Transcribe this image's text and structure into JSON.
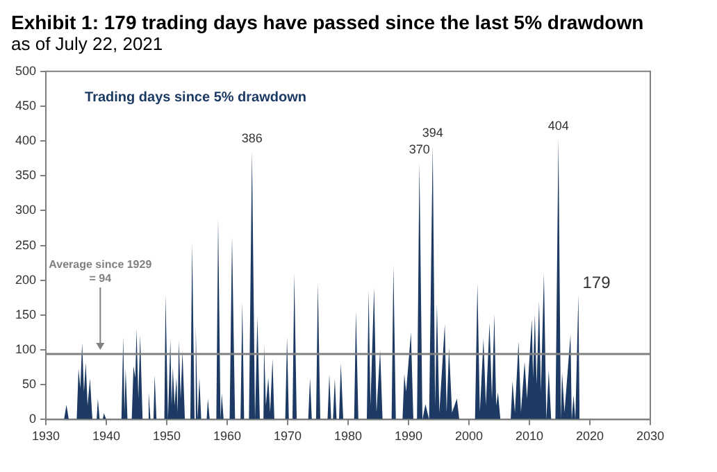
{
  "chart_data": {
    "type": "area",
    "title": "Exhibit 1: 179 trading days have passed since the last 5% drawdown",
    "subtitle": "as of July 22, 2021",
    "series": [
      {
        "name": "Trading days since 5% drawdown",
        "color": "#1c3a63",
        "x": [
          1930,
          1933.0,
          1933.4,
          1933.8,
          1935.1,
          1935.4,
          1935.7,
          1936.0,
          1936.3,
          1936.6,
          1936.9,
          1937.3,
          1937.7,
          1938.4,
          1938.6,
          1938.9,
          1939.4,
          1939.6,
          1940.0,
          1942.5,
          1942.8,
          1943.0,
          1943.2,
          1943.5,
          1944.2,
          1944.5,
          1944.8,
          1945.0,
          1945.3,
          1945.6,
          1946.0,
          1946.8,
          1947.0,
          1947.3,
          1947.8,
          1948.0,
          1948.3,
          1949.6,
          1949.8,
          1950.2,
          1950.6,
          1950.8,
          1951.0,
          1951.3,
          1951.6,
          1951.8,
          1952.0,
          1952.3,
          1952.6,
          1953.0,
          1953.9,
          1954.2,
          1954.6,
          1954.8,
          1955.1,
          1955.4,
          1955.7,
          1956.6,
          1956.8,
          1957.1,
          1958.2,
          1958.5,
          1958.9,
          1959.1,
          1959.4,
          1960.4,
          1960.8,
          1961.3,
          1962.2,
          1962.5,
          1962.8,
          1963.6,
          1964.1,
          1964.6,
          1965.0,
          1965.4,
          1966.0,
          1966.1,
          1966.4,
          1966.8,
          1967.1,
          1967.5,
          1967.8,
          1969.6,
          1969.9,
          1970.2,
          1970.8,
          1971.1,
          1971.5,
          1973.4,
          1973.7,
          1974.0,
          1974.7,
          1975.0,
          1975.4,
          1976.6,
          1976.9,
          1977.2,
          1977.5,
          1977.8,
          1978.1,
          1978.5,
          1978.8,
          1979.2,
          1981.0,
          1981.3,
          1981.7,
          1983.1,
          1983.4,
          1983.7,
          1984.3,
          1984.7,
          1985.3,
          1985.7,
          1987.2,
          1987.5,
          1987.9,
          1989.0,
          1989.3,
          1989.6,
          1990.4,
          1990.8,
          1991.4,
          1991.8,
          1992.3,
          1992.8,
          1993.4,
          1994.0,
          1994.4,
          1994.7,
          1995.1,
          1996.0,
          1996.3,
          1996.7,
          1997.2,
          1998.0,
          1998.4,
          2001.0,
          2001.4,
          2001.8,
          2002.4,
          2002.8,
          2003.4,
          2003.8,
          2004.2,
          2004.5,
          2004.8,
          2005.2,
          2006.9,
          2007.2,
          2007.6,
          2008.2,
          2008.6,
          2009.2,
          2009.6,
          2010.4,
          2010.6,
          2010.9,
          2011.2,
          2011.6,
          2011.9,
          2012.4,
          2012.8,
          2013.2,
          2013.6,
          2014.3,
          2014.8,
          2015.2,
          2015.4,
          2015.8,
          2016.8,
          2017.0,
          2017.3,
          2017.6,
          2017.8,
          2018.1,
          2018.3
        ],
        "values": [
          0,
          0,
          21,
          0,
          0,
          73,
          45,
          110,
          40,
          82,
          20,
          59,
          0,
          0,
          30,
          0,
          0,
          9,
          0,
          0,
          119,
          10,
          73,
          0,
          0,
          77,
          60,
          130,
          30,
          121,
          0,
          0,
          39,
          0,
          0,
          64,
          0,
          0,
          179,
          0,
          115,
          20,
          75,
          20,
          60,
          10,
          113,
          30,
          98,
          0,
          0,
          253,
          0,
          136,
          0,
          60,
          0,
          0,
          30,
          0,
          0,
          288,
          0,
          38,
          0,
          0,
          263,
          0,
          0,
          168,
          0,
          0,
          386,
          0,
          147,
          0,
          0,
          107,
          20,
          60,
          10,
          87,
          0,
          0,
          119,
          0,
          0,
          210,
          0,
          0,
          60,
          0,
          0,
          196,
          0,
          0,
          65,
          0,
          0,
          59,
          0,
          0,
          81,
          0,
          0,
          156,
          0,
          0,
          186,
          20,
          189,
          10,
          100,
          0,
          0,
          221,
          0,
          0,
          65,
          40,
          125,
          0,
          0,
          370,
          0,
          22,
          0,
          394,
          20,
          165,
          10,
          137,
          10,
          103,
          10,
          30,
          0,
          0,
          196,
          10,
          116,
          20,
          139,
          30,
          151,
          20,
          39,
          0,
          0,
          55,
          10,
          112,
          10,
          83,
          30,
          144,
          60,
          151,
          50,
          170,
          40,
          210,
          0,
          71,
          0,
          0,
          404,
          0,
          68,
          10,
          122,
          0,
          35,
          0,
          0,
          179,
          0
        ]
      }
    ],
    "xlim": [
      1930,
      2030
    ],
    "xticks": [
      1930,
      1940,
      1950,
      1960,
      1970,
      1980,
      1990,
      2000,
      2010,
      2020,
      2030
    ],
    "ylim": [
      0,
      500
    ],
    "yticks": [
      0,
      50,
      100,
      150,
      200,
      250,
      300,
      350,
      400,
      450,
      500
    ],
    "grid": false,
    "legend": "top left",
    "ref_lines": [
      {
        "axis": "y",
        "value": 94,
        "label": "Average since 1929 = 94",
        "color": "#808080"
      }
    ],
    "annotations": [
      {
        "text": "386",
        "x": 1964.1,
        "y": 386
      },
      {
        "text": "370",
        "x": 1991.8,
        "y": 370
      },
      {
        "text": "394",
        "x": 1994.0,
        "y": 394
      },
      {
        "text": "404",
        "x": 2014.8,
        "y": 404
      },
      {
        "text": "179",
        "x": 2018.1,
        "y": 179
      }
    ]
  }
}
